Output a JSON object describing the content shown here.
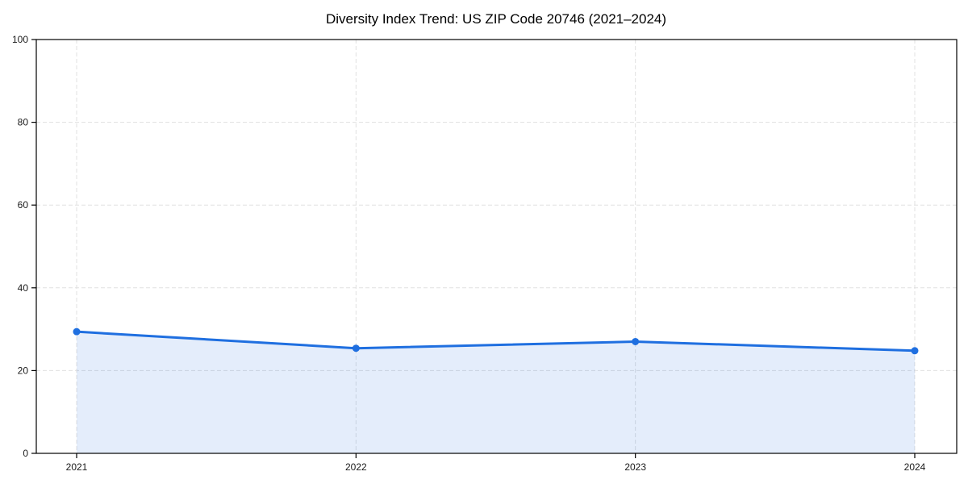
{
  "chart_data": {
    "type": "area",
    "title": "Diversity Index Trend: US ZIP Code 20746 (2021–2024)",
    "x": [
      2021,
      2022,
      2023,
      2024
    ],
    "series": [
      {
        "name": "Diversity Index",
        "values": [
          29.4,
          25.4,
          27.0,
          24.8
        ]
      }
    ],
    "xlabel": "",
    "ylabel": "",
    "ylim": [
      0,
      100
    ],
    "yticks": [
      0,
      20,
      40,
      60,
      80,
      100
    ],
    "xticks": [
      2021,
      2022,
      2023,
      2024
    ],
    "grid": true,
    "grid_style": "dashed",
    "legend": "none",
    "marker": "circle",
    "colors": {
      "line": "#1f6fe0",
      "marker": "#1f6fe0",
      "fill": "rgba(31, 111, 224, 0.12)",
      "grid": "#e0e0e0",
      "spine": "#000000",
      "tick_label": "#1a1a1a",
      "title": "#000000",
      "background": "#ffffff"
    }
  }
}
